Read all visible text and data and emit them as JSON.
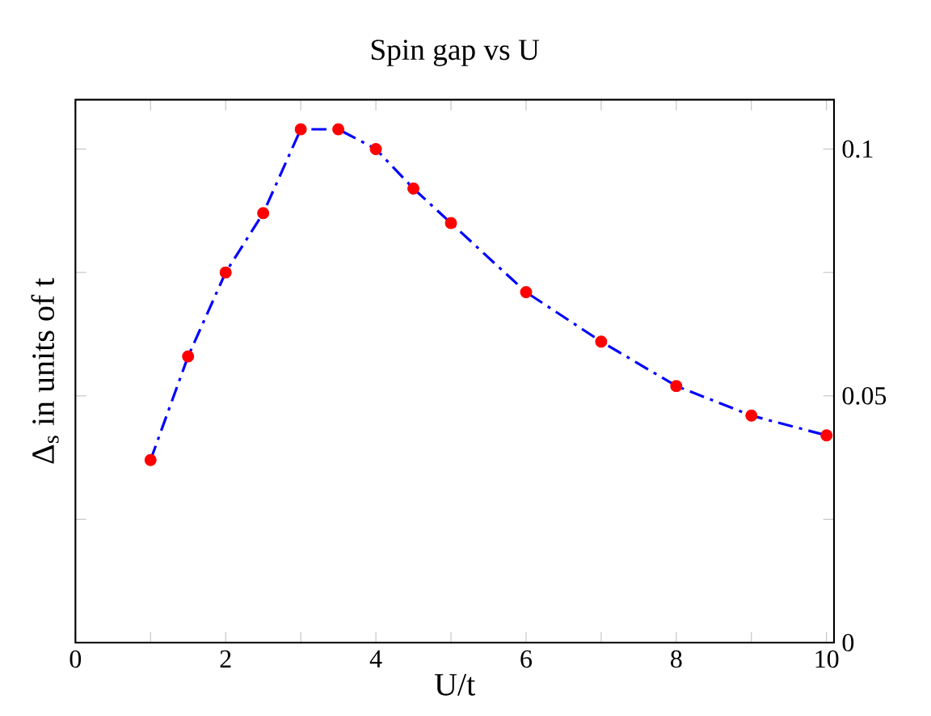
{
  "chart_data": {
    "type": "line",
    "title": "Spin gap vs U",
    "xlabel": "U/t",
    "ylabel": "Δ$_{s}$ in units of t",
    "x": [
      1,
      1.5,
      2,
      2.5,
      3,
      3.5,
      4,
      4.5,
      5,
      6,
      7,
      8,
      9,
      10
    ],
    "series": [
      {
        "color": "#0000ff",
        "colors": [
          "#ff0000",
          "#ff0000",
          "#ff0000",
          "#ff0000",
          "#ff0000",
          "#ff0000",
          "#ff0000",
          "#ff0000",
          "#ff0000",
          "#ff0000",
          "#ff0000",
          "#ff0000",
          "#ff0000",
          "#ff0000"
        ],
        "values": [
          0.037,
          0.058,
          0.075,
          0.087,
          0.104,
          0.104,
          0.1,
          0.092,
          0.085,
          0.071,
          0.061,
          0.052,
          0.046,
          0.042
        ]
      }
    ],
    "xlim": [
      0,
      10.1
    ],
    "ylim": [
      0,
      0.11
    ],
    "xticks": [
      0,
      {
        "value": 1,
        "label": null
      },
      2,
      {
        "value": 3,
        "label": null
      },
      4,
      {
        "value": 5,
        "label": null
      },
      6,
      {
        "value": 7,
        "label": null
      },
      8,
      {
        "value": 9,
        "label": null
      },
      10
    ],
    "yticks": [
      0,
      {
        "value": 0.025,
        "label": null
      },
      0.05,
      {
        "value": 0.075,
        "label": null
      },
      0.1
    ],
    "marker": "circle",
    "line_style": "dashdot"
  }
}
